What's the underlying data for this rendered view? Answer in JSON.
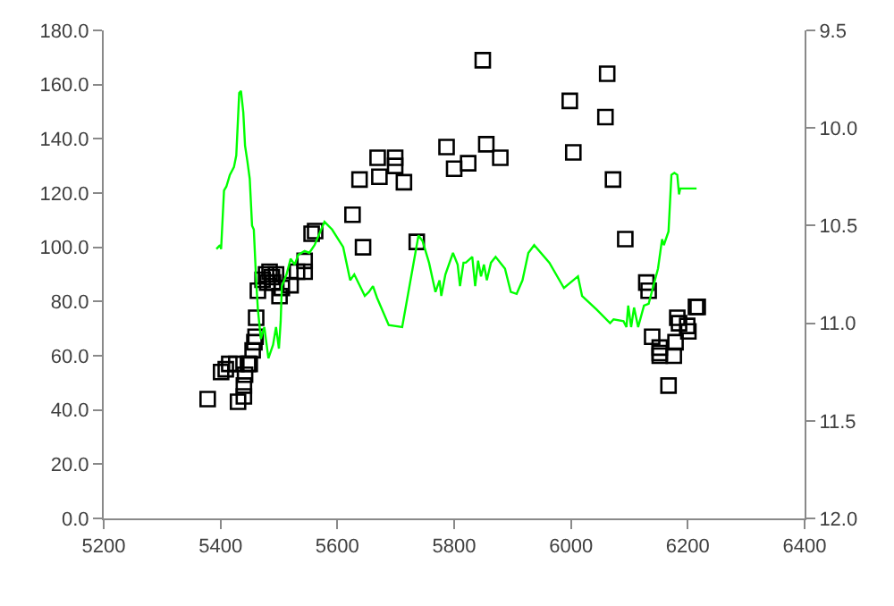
{
  "chart_data": {
    "type": "scatter",
    "xlim": [
      5200,
      6400
    ],
    "xticks": [
      5200,
      5400,
      5600,
      5800,
      6000,
      6200,
      6400
    ],
    "ylim": [
      0,
      180
    ],
    "yticks": [
      {
        "value": 0,
        "label": "0.0"
      },
      {
        "value": 20,
        "label": "20.0"
      },
      {
        "value": 40,
        "label": "40.0"
      },
      {
        "value": 60,
        "label": "60.0"
      },
      {
        "value": 80,
        "label": "80.0"
      },
      {
        "value": 100,
        "label": "100.0"
      },
      {
        "value": 120,
        "label": "120.0"
      },
      {
        "value": 140,
        "label": "140.0"
      },
      {
        "value": 160,
        "label": "160.0"
      },
      {
        "value": 180,
        "label": "180.0"
      }
    ],
    "y2lim": [
      12.0,
      9.5
    ],
    "y2ticks": [
      {
        "value": 9.5,
        "label": "9.5"
      },
      {
        "value": 10.0,
        "label": "10.0"
      },
      {
        "value": 10.5,
        "label": "10.5"
      },
      {
        "value": 11.0,
        "label": "11.0"
      },
      {
        "value": 11.5,
        "label": "11.5"
      },
      {
        "value": 12.0,
        "label": "12.0"
      }
    ],
    "grid": false,
    "series": [
      {
        "color": "#000000",
        "marker": "square",
        "x": [
          5378,
          5430,
          5440,
          5440,
          5442,
          5447,
          5401,
          5409,
          5415,
          5427,
          5450,
          5455,
          5458,
          5460,
          5461,
          5464,
          5472,
          5478,
          5484,
          5488,
          5490,
          5495,
          5480,
          5501,
          5505,
          5520,
          5531,
          5544,
          5544,
          5556,
          5562,
          5626,
          5638,
          5644,
          5669,
          5672,
          5699,
          5699,
          5714,
          5736,
          5787,
          5800,
          5824,
          5855,
          5849,
          5879,
          5998,
          6062,
          6059,
          6004,
          6072,
          6093,
          6129,
          6133,
          6139,
          6152,
          6152,
          6152,
          6176,
          6179,
          6167,
          6182,
          6185,
          6199,
          6201,
          6214,
          6217
        ],
        "values": [
          44,
          43,
          45,
          49,
          53,
          57,
          54,
          55,
          57,
          57,
          57,
          62,
          65,
          67,
          74,
          84,
          88,
          90,
          91,
          89,
          87,
          90,
          87,
          82,
          85,
          86,
          91,
          91,
          95,
          105,
          106,
          112,
          125,
          100,
          133,
          126,
          133,
          130,
          124,
          102,
          137,
          129,
          131,
          138,
          169,
          133,
          154,
          164,
          148,
          135,
          125,
          103,
          87,
          84,
          67,
          63,
          61,
          60,
          60,
          65,
          49,
          74,
          72,
          71,
          69,
          78,
          78
        ]
      },
      {
        "type": "line",
        "axis": "y2",
        "color": "#00ff00",
        "marker": "none",
        "x": [
          5393,
          5399,
          5401,
          5406,
          5410,
          5416,
          5423,
          5427,
          5432,
          5435,
          5439,
          5442,
          5446,
          5450,
          5454,
          5457,
          5461,
          5464,
          5469,
          5475,
          5482,
          5490,
          5495,
          5500,
          5503,
          5505,
          5513,
          5520,
          5527,
          5533,
          5544,
          5552,
          5561,
          5578,
          5591,
          5610,
          5622,
          5629,
          5647,
          5654,
          5661,
          5668,
          5688,
          5711,
          5739,
          5746,
          5757,
          5768,
          5775,
          5778,
          5785,
          5798,
          5806,
          5810,
          5816,
          5820,
          5831,
          5836,
          5841,
          5846,
          5851,
          5856,
          5863,
          5871,
          5879,
          5887,
          5897,
          5907,
          5917,
          5927,
          5937,
          5963,
          5988,
          6012,
          6019,
          6044,
          6067,
          6073,
          6090,
          6095,
          6098,
          6103,
          6108,
          6115,
          6125,
          6133,
          6141,
          6149,
          6156,
          6159,
          6167,
          6172,
          6177,
          6182,
          6185,
          6187,
          6215
        ],
        "values": [
          10.62,
          10.6,
          10.62,
          10.32,
          10.3,
          10.24,
          10.2,
          10.14,
          9.82,
          9.81,
          9.92,
          10.09,
          10.17,
          10.26,
          10.5,
          10.52,
          10.78,
          10.93,
          11.08,
          11.02,
          11.18,
          11.11,
          11.02,
          11.13,
          10.99,
          10.81,
          10.75,
          10.67,
          10.7,
          10.65,
          10.63,
          10.64,
          10.6,
          10.48,
          10.52,
          10.61,
          10.78,
          10.75,
          10.86,
          10.84,
          10.81,
          10.87,
          11.01,
          11.02,
          10.55,
          10.58,
          10.69,
          10.84,
          10.78,
          10.86,
          10.75,
          10.64,
          10.7,
          10.81,
          10.69,
          10.69,
          10.66,
          10.81,
          10.68,
          10.76,
          10.7,
          10.78,
          10.69,
          10.66,
          10.69,
          10.72,
          10.84,
          10.85,
          10.78,
          10.64,
          10.6,
          10.69,
          10.82,
          10.76,
          10.86,
          10.93,
          11.0,
          10.98,
          10.99,
          11.02,
          10.91,
          11.02,
          10.92,
          11.02,
          10.91,
          10.9,
          10.81,
          10.72,
          10.57,
          10.6,
          10.53,
          10.24,
          10.23,
          10.24,
          10.34,
          10.31,
          10.31
        ]
      }
    ]
  }
}
